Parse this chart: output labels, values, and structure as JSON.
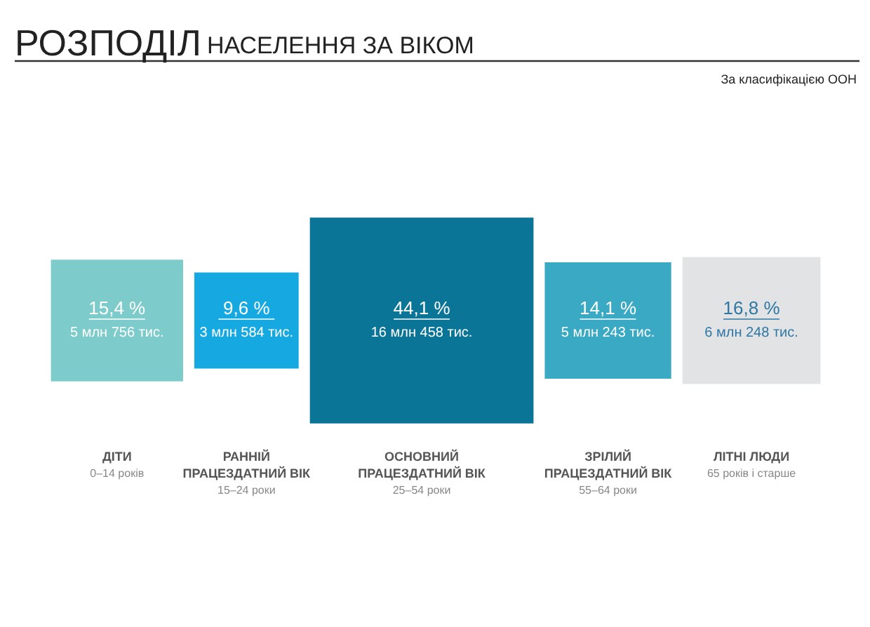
{
  "chart_data": {
    "type": "other",
    "title": "РОЗПОДІЛ",
    "subtitle": "НАСЕЛЕННЯ ЗА ВІКОМ",
    "categories": [
      "ДІТИ",
      "РАННІЙ\nПРАЦЕЗДАТНИЙ ВІК",
      "ОСНОВНИЙ\nПРАЦЕЗДАТНИЙ ВІК",
      "ЗРІЛИЙ\nПРАЦЕЗДАТНИЙ ВІК",
      "ЛІТНІ ЛЮДИ"
    ],
    "colors": [
      "#7ecbcb",
      "#16a9e1",
      "#0b7597",
      "#3aa9c3",
      "#e2e3e5"
    ],
    "values": [
      15.4,
      9.6,
      44.1,
      14.1,
      16.8
    ],
    "value_labels": [
      "15,4 %",
      "9,6 %",
      "44,1 %",
      "14,1 %",
      "16,8 %"
    ],
    "annotations": [
      "За класифікацією ООН",
      {
        "text": "5 млн 756 тис.",
        "x": "ДІТИ"
      },
      {
        "text": "3 млн 584 тис.",
        "x": "РАННІЙ\nПРАЦЕЗДАТНИЙ ВІК"
      },
      {
        "text": "16 млн 458 тис.",
        "x": "ОСНОВНИЙ\nПРАЦЕЗДАТНИЙ ВІК"
      },
      {
        "text": "5 млн 243 тис.",
        "x": "ЗРІЛИЙ\nПРАЦЕЗДАТНИЙ ВІК"
      },
      {
        "text": "6 млн 248 тис.",
        "x": "ЛІТНІ ЛЮДИ"
      },
      {
        "text": "0–14 років",
        "x": "ДІТИ"
      },
      {
        "text": "15–24 роки",
        "x": "РАННІЙ\nПРАЦЕЗДАТНИЙ ВІК"
      },
      {
        "text": "25–54 роки",
        "x": "ОСНОВНИЙ\nПРАЦЕЗДАТНИЙ ВІК"
      },
      {
        "text": "55–64 роки",
        "x": "ЗРІЛИЙ\nПРАЦЕЗДАТНИЙ ВІК"
      },
      {
        "text": "65 років і старше",
        "x": "ЛІТНІ ЛЮДИ"
      }
    ]
  }
}
